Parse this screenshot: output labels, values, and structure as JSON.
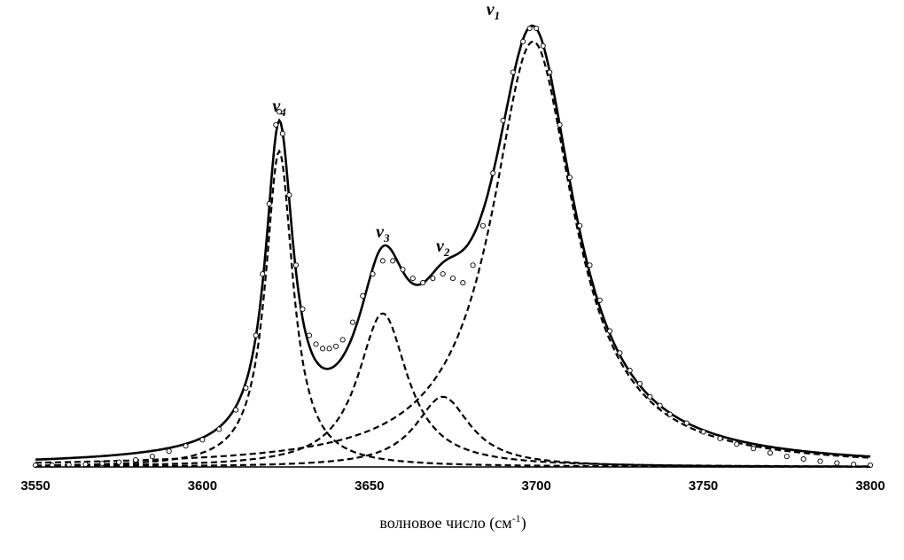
{
  "chart_data": {
    "type": "line",
    "title": "",
    "xlabel": "волновое число (см",
    "xlabel_sup": "-1",
    "xlabel_tail": ")",
    "ylabel": "",
    "xlim": [
      3550,
      3800
    ],
    "ylim": [
      0,
      1.0
    ],
    "grid": false,
    "x_ticks": [
      "3550",
      "3600",
      "3650",
      "3700",
      "3750",
      "3800"
    ],
    "components": [
      {
        "label": "ν",
        "sub": "1",
        "center": 3699,
        "height": 0.97,
        "hwhm": 15
      },
      {
        "label": "ν",
        "sub": "2",
        "center": 3672,
        "height": 0.16,
        "hwhm": 10
      },
      {
        "label": "ν",
        "sub": "3",
        "center": 3654,
        "height": 0.35,
        "hwhm": 9
      },
      {
        "label": "ν",
        "sub": "4",
        "center": 3623,
        "height": 0.72,
        "hwhm": 5
      }
    ],
    "series_styles": {
      "components": "dashed",
      "fit": "solid",
      "observed": "open-circles"
    },
    "observed": [
      [
        3550,
        0.004
      ],
      [
        3555,
        0.004
      ],
      [
        3560,
        0.005
      ],
      [
        3565,
        0.006
      ],
      [
        3570,
        0.008
      ],
      [
        3575,
        0.011
      ],
      [
        3580,
        0.016
      ],
      [
        3585,
        0.024
      ],
      [
        3590,
        0.036
      ],
      [
        3595,
        0.048
      ],
      [
        3600,
        0.062
      ],
      [
        3605,
        0.086
      ],
      [
        3610,
        0.13
      ],
      [
        3613,
        0.18
      ],
      [
        3616,
        0.3
      ],
      [
        3618,
        0.44
      ],
      [
        3620,
        0.6
      ],
      [
        3622,
        0.78
      ],
      [
        3623,
        0.81
      ],
      [
        3624,
        0.76
      ],
      [
        3626,
        0.62
      ],
      [
        3628,
        0.46
      ],
      [
        3630,
        0.36
      ],
      [
        3632,
        0.3
      ],
      [
        3634,
        0.28
      ],
      [
        3636,
        0.27
      ],
      [
        3638,
        0.27
      ],
      [
        3640,
        0.275
      ],
      [
        3642,
        0.29
      ],
      [
        3645,
        0.33
      ],
      [
        3648,
        0.39
      ],
      [
        3651,
        0.44
      ],
      [
        3654,
        0.47
      ],
      [
        3657,
        0.47
      ],
      [
        3660,
        0.45
      ],
      [
        3663,
        0.43
      ],
      [
        3666,
        0.42
      ],
      [
        3669,
        0.43
      ],
      [
        3672,
        0.44
      ],
      [
        3675,
        0.43
      ],
      [
        3678,
        0.42
      ],
      [
        3681,
        0.46
      ],
      [
        3684,
        0.55
      ],
      [
        3687,
        0.67
      ],
      [
        3690,
        0.79
      ],
      [
        3693,
        0.9
      ],
      [
        3696,
        0.97
      ],
      [
        3698,
        1.0
      ],
      [
        3700,
        1.0
      ],
      [
        3702,
        0.96
      ],
      [
        3704,
        0.9
      ],
      [
        3707,
        0.78
      ],
      [
        3710,
        0.66
      ],
      [
        3713,
        0.55
      ],
      [
        3716,
        0.46
      ],
      [
        3719,
        0.38
      ],
      [
        3722,
        0.31
      ],
      [
        3725,
        0.26
      ],
      [
        3728,
        0.22
      ],
      [
        3731,
        0.19
      ],
      [
        3734,
        0.16
      ],
      [
        3737,
        0.14
      ],
      [
        3740,
        0.12
      ],
      [
        3745,
        0.1
      ],
      [
        3750,
        0.08
      ],
      [
        3755,
        0.065
      ],
      [
        3760,
        0.052
      ],
      [
        3765,
        0.042
      ],
      [
        3770,
        0.032
      ],
      [
        3775,
        0.024
      ],
      [
        3780,
        0.018
      ],
      [
        3785,
        0.013
      ],
      [
        3790,
        0.009
      ],
      [
        3795,
        0.006
      ],
      [
        3800,
        0.004
      ]
    ]
  }
}
